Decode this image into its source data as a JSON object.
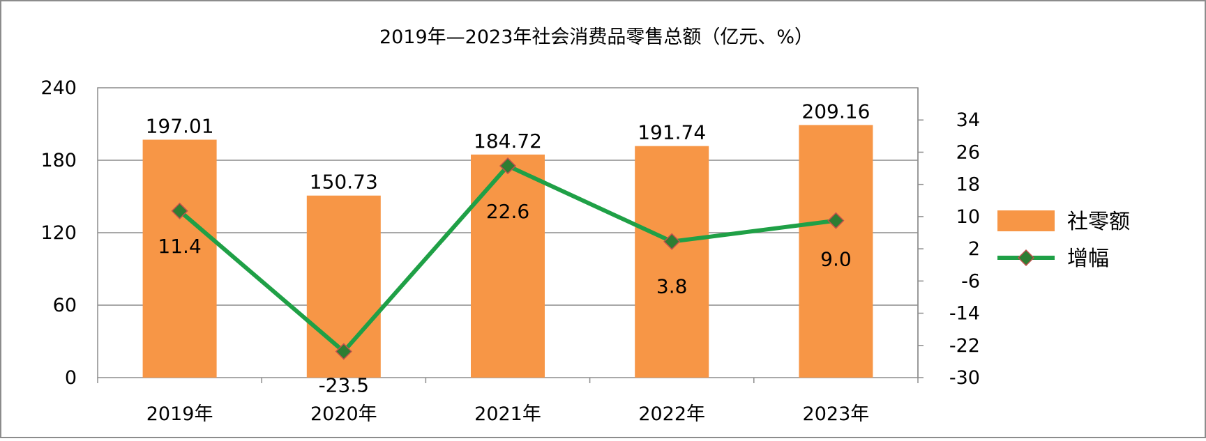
{
  "chart_data": {
    "type": "bar+line",
    "title": "2019年—2023年社会消费品零售总额（亿元、%）",
    "categories": [
      "2019年",
      "2020年",
      "2021年",
      "2022年",
      "2023年"
    ],
    "series": [
      {
        "name": "社零额",
        "type": "bar",
        "axis": "left",
        "values": [
          197.01,
          150.73,
          184.72,
          191.74,
          209.16
        ],
        "labels": [
          "197.01",
          "150.73",
          "184.72",
          "191.74",
          "209.16"
        ],
        "color": "#F79646"
      },
      {
        "name": "增幅",
        "type": "line",
        "axis": "right",
        "values": [
          11.4,
          -23.5,
          22.6,
          3.8,
          9.0
        ],
        "labels": [
          "11.4",
          "-23.5",
          "22.6",
          "3.8",
          "9.0"
        ],
        "color": "#1FA046",
        "marker_color": "#2E7D32",
        "marker_edge": "#C0504D"
      }
    ],
    "y_left": {
      "range": [
        0,
        240
      ],
      "ticks": [
        "0",
        "60",
        "120",
        "180",
        "240"
      ]
    },
    "y_right": {
      "range": [
        -30,
        42
      ],
      "ticks": [
        "-30",
        "-22",
        "-14",
        "-6",
        "2",
        "10",
        "18",
        "26",
        "34"
      ]
    },
    "grid": true,
    "legend": {
      "position": "right",
      "entries": [
        "社零额",
        "增幅"
      ]
    }
  }
}
